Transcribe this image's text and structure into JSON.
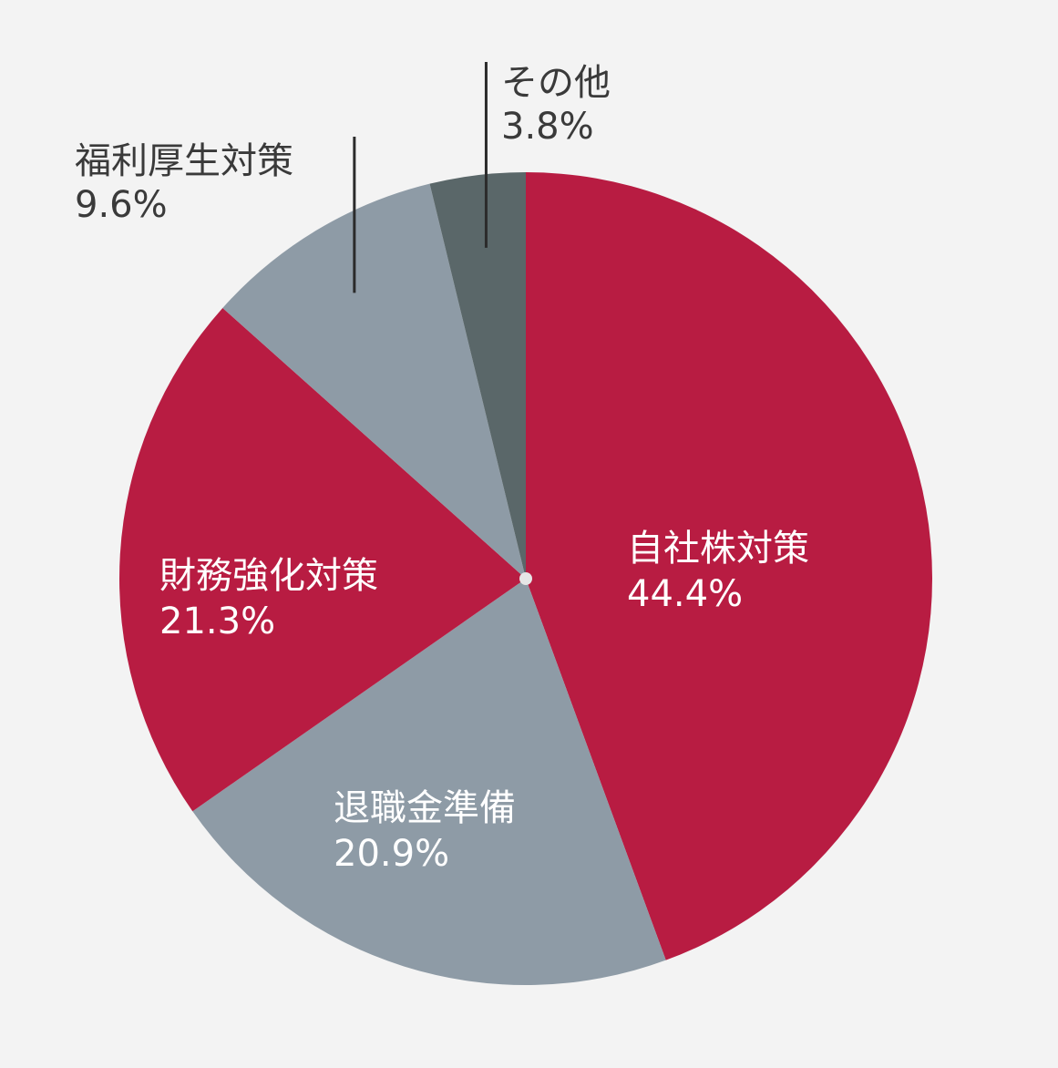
{
  "chart_data": {
    "type": "pie",
    "title": "",
    "start_angle_deg": 0,
    "direction": "clockwise",
    "slices": [
      {
        "label": "自社株対策",
        "value": 44.4,
        "value_label": "44.4%",
        "color": "#b81c42",
        "label_position": "inside"
      },
      {
        "label": "退職金準備",
        "value": 20.9,
        "value_label": "20.9%",
        "color": "#8e9ba6",
        "label_position": "inside"
      },
      {
        "label": "財務強化対策",
        "value": 21.3,
        "value_label": "21.3%",
        "color": "#b81c42",
        "label_position": "inside"
      },
      {
        "label": "福利厚生対策",
        "value": 9.6,
        "value_label": "9.6%",
        "color": "#8e9ba6",
        "label_position": "outside"
      },
      {
        "label": "その他",
        "value": 3.8,
        "value_label": "3.8%",
        "color": "#5a6769",
        "label_position": "outside"
      }
    ]
  }
}
